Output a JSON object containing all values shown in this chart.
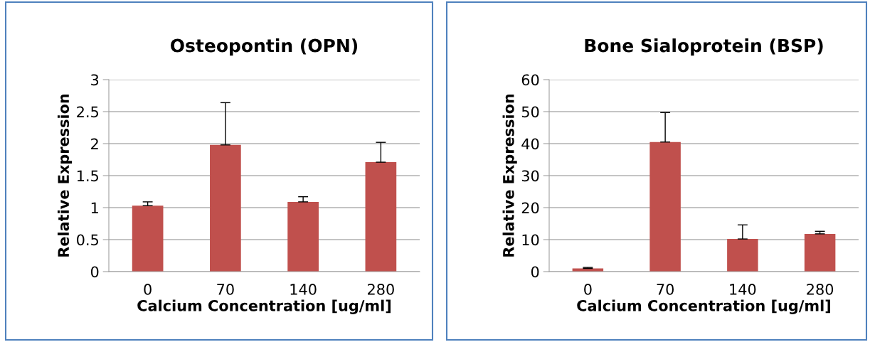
{
  "chart_data": [
    {
      "type": "bar",
      "title": "Osteopontin (OPN)",
      "xlabel": "Calcium Concentration [ug/ml]",
      "ylabel": "Relative Expression",
      "categories": [
        "0",
        "70",
        "140",
        "280"
      ],
      "values": [
        1.03,
        1.98,
        1.09,
        1.71
      ],
      "errors": [
        [
          1.03,
          1.09
        ],
        [
          1.98,
          2.64
        ],
        [
          1.09,
          1.17
        ],
        [
          1.71,
          2.02
        ]
      ],
      "color": "#c0504d",
      "ylim": [
        0,
        3
      ],
      "yticks": [
        0,
        0.5,
        1,
        1.5,
        2,
        2.5,
        3
      ],
      "grid": "y",
      "legend": false
    },
    {
      "type": "bar",
      "title": "Bone Sialoprotein (BSP)",
      "xlabel": "Calcium Concentration [ug/ml]",
      "ylabel": "Relative Expression",
      "categories": [
        "0",
        "70",
        "140",
        "280"
      ],
      "values": [
        1.0,
        40.5,
        10.2,
        11.8
      ],
      "errors": [
        [
          1.0,
          1.3
        ],
        [
          40.5,
          49.7
        ],
        [
          10.2,
          14.6
        ],
        [
          11.8,
          12.6
        ]
      ],
      "color": "#c0504d",
      "ylim": [
        0,
        60
      ],
      "yticks": [
        0,
        10,
        20,
        30,
        40,
        50,
        60
      ],
      "grid": "y",
      "legend": false
    }
  ]
}
